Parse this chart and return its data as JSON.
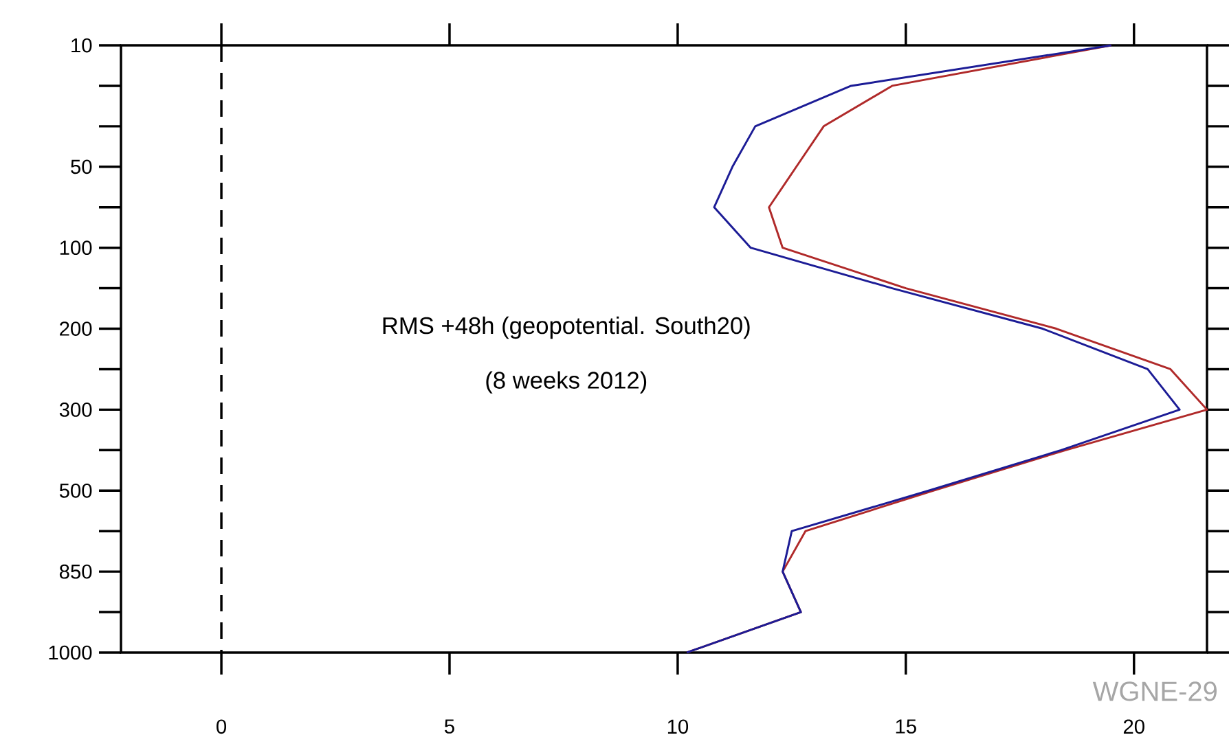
{
  "chart_data": {
    "type": "line",
    "orientation": "horizontal",
    "title": "RMS +48h (geopotential. South20)",
    "subtitle": "(8 weeks 2012)",
    "annotations": [
      "WGNE-29"
    ],
    "categories": [
      "10",
      null,
      null,
      "50",
      null,
      "100",
      null,
      "200",
      null,
      "300",
      null,
      "500",
      null,
      "850",
      null,
      "1000"
    ],
    "series": [
      {
        "color": "#b02a2a",
        "values": [
          19.5,
          14.7,
          13.2,
          12.6,
          12.0,
          12.3,
          15.0,
          18.3,
          20.8,
          21.6,
          18.5,
          15.6,
          12.8,
          12.3,
          12.7,
          10.2
        ]
      },
      {
        "color": "#1c1c96",
        "values": [
          19.5,
          13.8,
          11.7,
          11.2,
          10.8,
          11.6,
          14.7,
          18.0,
          20.3,
          21.0,
          18.4,
          15.5,
          12.5,
          12.3,
          12.7,
          10.2
        ]
      }
    ],
    "xlim": [
      -2.2,
      21.6
    ],
    "xticks": [
      0,
      5,
      10,
      15,
      20
    ],
    "ref_lines": [
      {
        "axis": "x",
        "value": 0,
        "line_style": "dashed",
        "color": "#000000"
      }
    ],
    "line_style": "solid",
    "grid": false
  }
}
